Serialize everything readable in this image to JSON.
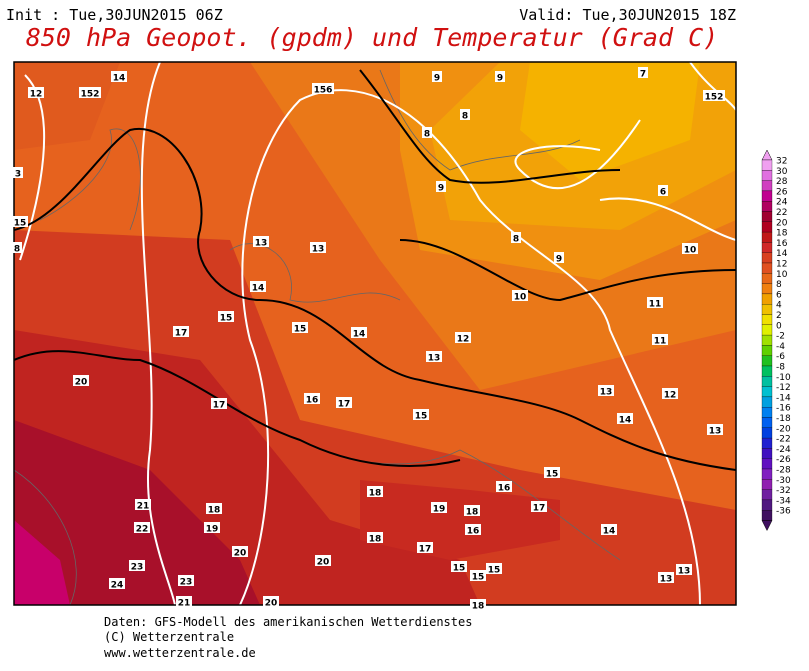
{
  "header": {
    "init": "Init : Tue,30JUN2015 06Z",
    "valid": "Valid: Tue,30JUN2015 18Z",
    "title": "850 hPa Geopot. (gpdm) und Temperatur (Grad C)"
  },
  "map": {
    "labels": [
      14,
      12,
      152,
      156,
      9,
      9,
      7,
      152,
      8,
      8,
      3,
      9,
      6,
      15,
      8,
      13,
      13,
      8,
      9,
      10,
      14,
      10,
      11,
      15,
      15,
      17,
      14,
      12,
      11,
      13,
      20,
      13,
      12,
      16,
      17,
      17,
      15,
      14,
      13,
      15,
      18,
      16,
      21,
      18,
      19,
      18,
      17,
      22,
      19,
      16,
      14,
      18,
      17,
      20,
      20,
      23,
      15,
      15,
      15,
      24,
      23,
      13,
      13,
      21,
      20,
      18
    ]
  },
  "colorbar": {
    "labels": [
      32,
      30,
      28,
      26,
      24,
      22,
      20,
      18,
      16,
      14,
      12,
      10,
      8,
      6,
      4,
      2,
      0,
      -2,
      -4,
      -6,
      -8,
      -10,
      -12,
      -14,
      -16,
      -18,
      -20,
      -22,
      -24,
      -26,
      -28,
      -30,
      -32,
      -34,
      -36
    ]
  },
  "footer": [
    "Daten: GFS-Modell des amerikanischen Wetterdienstes",
    "(C) Wetterzentrale",
    "www.wetterzentrale.de"
  ]
}
